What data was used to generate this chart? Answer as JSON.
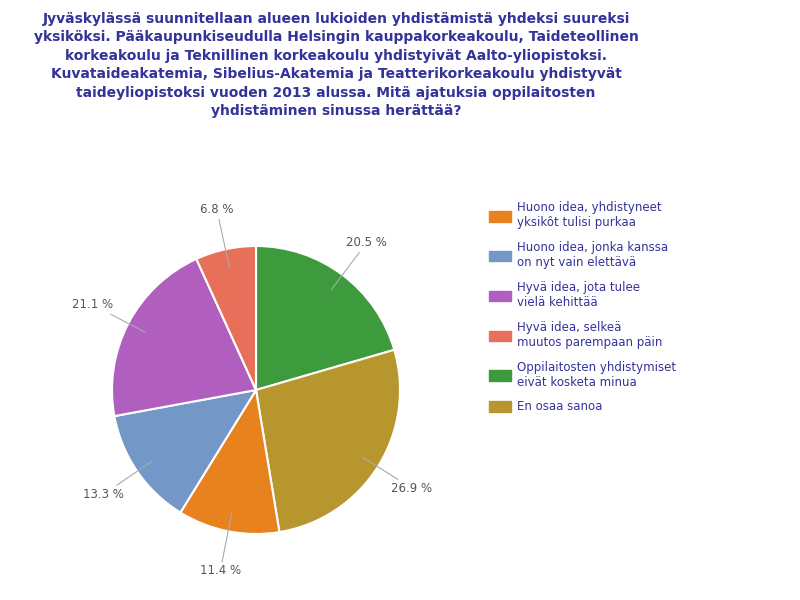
{
  "title": "Jyväskylässä suunnitellaan alueen lukioiden yhdistämistä yhdeksi suureksi\nyksiköksi. Pääkaupunkiseudulla Helsingin kauppakorkeakoulu, Taideteollinen\nkorkeakoulu ja Teknillinen korkeakoulu yhdistyivät Aalto-yliopistoksi.\nKuvataideakatemia, Sibelius-Akatemia ja Teatterikorkeakoulu yhdistyvät\ntaideyliopistoksi vuoden 2013 alussa. Mitä ajatuksia oppilaitosten\nyhdistäminen sinussa herättää?",
  "slices": [
    {
      "label": "Huono idea, yhdistyneet\nyksikôt tulisi purkaa",
      "value": 11.4,
      "color": "#e8821e"
    },
    {
      "label": "Huono idea, jonka kanssa\non nyt vain elettävä",
      "value": 13.3,
      "color": "#7398c8"
    },
    {
      "label": "Hyvä idea, jota tulee\nvielä kehittää",
      "value": 21.1,
      "color": "#b05fbf"
    },
    {
      "label": "Hyvä idea, selkeä\nmuutos parempaan päin",
      "value": 6.8,
      "color": "#e8705a"
    },
    {
      "label": "Oppilaitosten yhdistymiset\neivät kosketa minua",
      "value": 20.5,
      "color": "#3d9a3d"
    },
    {
      "label": "En osaa sanoa",
      "value": 26.9,
      "color": "#b8962e"
    }
  ],
  "title_color": "#333399",
  "label_color": "#555555",
  "title_fontsize": 10,
  "legend_fontsize": 8.5,
  "label_fontsize": 8.5,
  "background_color": "#ffffff",
  "pct_labels": [
    "11.4 %",
    "13.3 %",
    "21.1 %",
    "6.8 %",
    "20.5 %",
    "26.9 %"
  ],
  "plot_order": [
    4,
    5,
    0,
    1,
    2,
    3
  ]
}
